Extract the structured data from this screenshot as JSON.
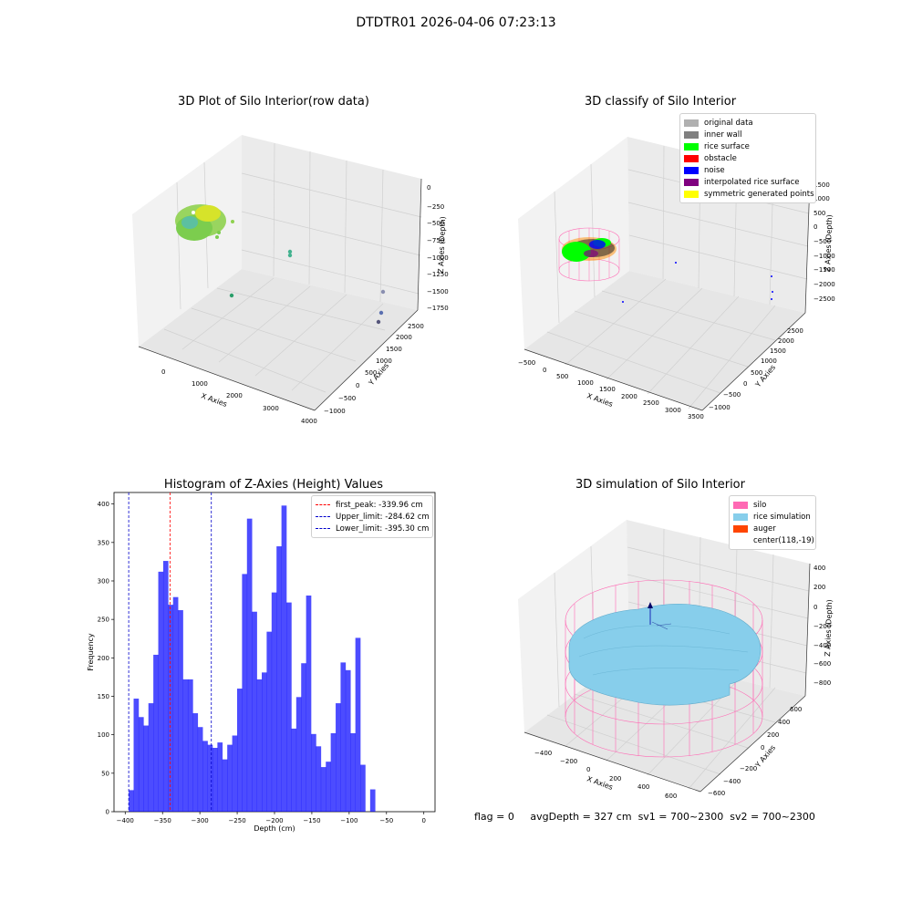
{
  "figure": {
    "title": "DTDTR01 2026-04-06 07:23:13",
    "status": {
      "flag": "flag = 0",
      "avg_depth": "avgDepth = 327 cm",
      "sv1": "sv1 = 700~2300",
      "sv2": "sv2 = 700~2300"
    }
  },
  "panels": {
    "raw": {
      "title": "3D Plot of Silo Interior(row data)",
      "xlabel": "X Axies",
      "ylabel": "Y Axies",
      "zlabel": "Z Axies (Depth)",
      "xticks": [
        "0",
        "1000",
        "2000",
        "3000",
        "4000"
      ],
      "yticks": [
        "−1000",
        "−500",
        "0",
        "500",
        "1000",
        "1500",
        "2000",
        "2500"
      ],
      "zticks": [
        "0",
        "−250",
        "−500",
        "−750",
        "−1000",
        "−1250",
        "−1500",
        "−1750"
      ]
    },
    "classify": {
      "title": "3D classify of Silo Interior",
      "xlabel": "X Axies",
      "ylabel": "Y Axies",
      "zlabel": "Z Axies (Depth)",
      "xticks": [
        "−500",
        "0",
        "500",
        "1000",
        "1500",
        "2000",
        "2500",
        "3000",
        "3500"
      ],
      "yticks": [
        "−1000",
        "−500",
        "0",
        "500",
        "1000",
        "1500",
        "2000",
        "2500"
      ],
      "zticks": [
        "1500",
        "1000",
        "500",
        "0",
        "−500",
        "−1000",
        "−1500",
        "−2000",
        "−2500"
      ],
      "legend": [
        {
          "label": "original data",
          "color": "#b0b0b0"
        },
        {
          "label": "inner wall",
          "color": "#808080"
        },
        {
          "label": "rice surface",
          "color": "#00ff00"
        },
        {
          "label": "obstacle",
          "color": "#ff0000"
        },
        {
          "label": "noise",
          "color": "#0000ff"
        },
        {
          "label": "interpolated rice surface",
          "color": "#800080"
        },
        {
          "label": "symmetric generated points",
          "color": "#ffff00"
        }
      ]
    },
    "histogram": {
      "title": "Histogram of Z-Axies (Height) Values",
      "xlabel": "Depth (cm)",
      "ylabel": "Frequency",
      "legend": [
        {
          "label": "first_peak: -339.96 cm",
          "color": "#ff0000"
        },
        {
          "label": "Upper_limit: -284.62 cm",
          "color": "#0000cc"
        },
        {
          "label": "Lower_limit: -395.30 cm",
          "color": "#0000cc"
        }
      ]
    },
    "simulation": {
      "title": "3D simulation of Silo Interior",
      "xlabel": "X Axies",
      "ylabel": "Y Axies",
      "zlabel": "Z Axies (Depth)",
      "xticks": [
        "−400",
        "−200",
        "0",
        "200",
        "400",
        "600"
      ],
      "yticks": [
        "−600",
        "−400",
        "−200",
        "0",
        "200",
        "400",
        "600"
      ],
      "zticks": [
        "400",
        "200",
        "0",
        "−200",
        "−400",
        "−600",
        "−800"
      ],
      "legend": [
        {
          "label": "silo",
          "color": "#ff69b4"
        },
        {
          "label": "rice simulation",
          "color": "#87ceeb"
        },
        {
          "label": "auger",
          "color": "#ff4500"
        },
        {
          "label": "center(118,-19)",
          "color": ""
        }
      ]
    }
  },
  "chart_data": [
    {
      "type": "scatter",
      "title": "3D Plot of Silo Interior(row data)",
      "xlabel": "X Axies",
      "ylabel": "Y Axies",
      "zlabel": "Z Axies (Depth)",
      "xlim": [
        -500,
        4000
      ],
      "ylim": [
        -1000,
        2500
      ],
      "zlim": [
        -1750,
        0
      ]
    },
    {
      "type": "scatter",
      "title": "3D classify of Silo Interior",
      "xlabel": "X Axies",
      "ylabel": "Y Axies",
      "zlabel": "Z Axies (Depth)",
      "xlim": [
        -500,
        3500
      ],
      "ylim": [
        -1000,
        2500
      ],
      "zlim": [
        -2500,
        1500
      ],
      "legend_position": "top-right"
    },
    {
      "type": "bar",
      "title": "Histogram of Z-Axies (Height) Values",
      "xlabel": "Depth (cm)",
      "ylabel": "Frequency",
      "xlim": [
        -415,
        15
      ],
      "ylim": [
        0,
        415
      ],
      "xticks": [
        -400,
        -350,
        -300,
        -250,
        -200,
        -150,
        -100,
        -50,
        0
      ],
      "yticks": [
        0,
        50,
        100,
        150,
        200,
        250,
        300,
        350,
        400
      ],
      "bin_edges_start": -395.3,
      "bin_width": 6.6,
      "values": [
        28,
        147,
        123,
        112,
        141,
        204,
        312,
        326,
        269,
        279,
        262,
        172,
        172,
        128,
        110,
        92,
        87,
        83,
        90,
        68,
        87,
        99,
        160,
        309,
        381,
        260,
        172,
        181,
        234,
        285,
        345,
        398,
        272,
        108,
        149,
        193,
        281,
        101,
        85,
        58,
        65,
        102,
        141,
        194,
        184,
        102,
        226,
        61,
        0,
        29
      ],
      "vlines": [
        {
          "label": "first_peak: -339.96 cm",
          "x": -339.96,
          "color": "#ff0000"
        },
        {
          "label": "Upper_limit: -284.62 cm",
          "x": -284.62,
          "color": "#0000cc"
        },
        {
          "label": "Lower_limit: -395.30 cm",
          "x": -395.3,
          "color": "#0000cc"
        }
      ],
      "legend_position": "top-right"
    },
    {
      "type": "scatter",
      "title": "3D simulation of Silo Interior",
      "xlabel": "X Axies",
      "ylabel": "Y Axies",
      "zlabel": "Z Axies (Depth)",
      "xlim": [
        -500,
        700
      ],
      "ylim": [
        -700,
        600
      ],
      "zlim": [
        -900,
        400
      ],
      "legend_position": "top-right"
    }
  ]
}
